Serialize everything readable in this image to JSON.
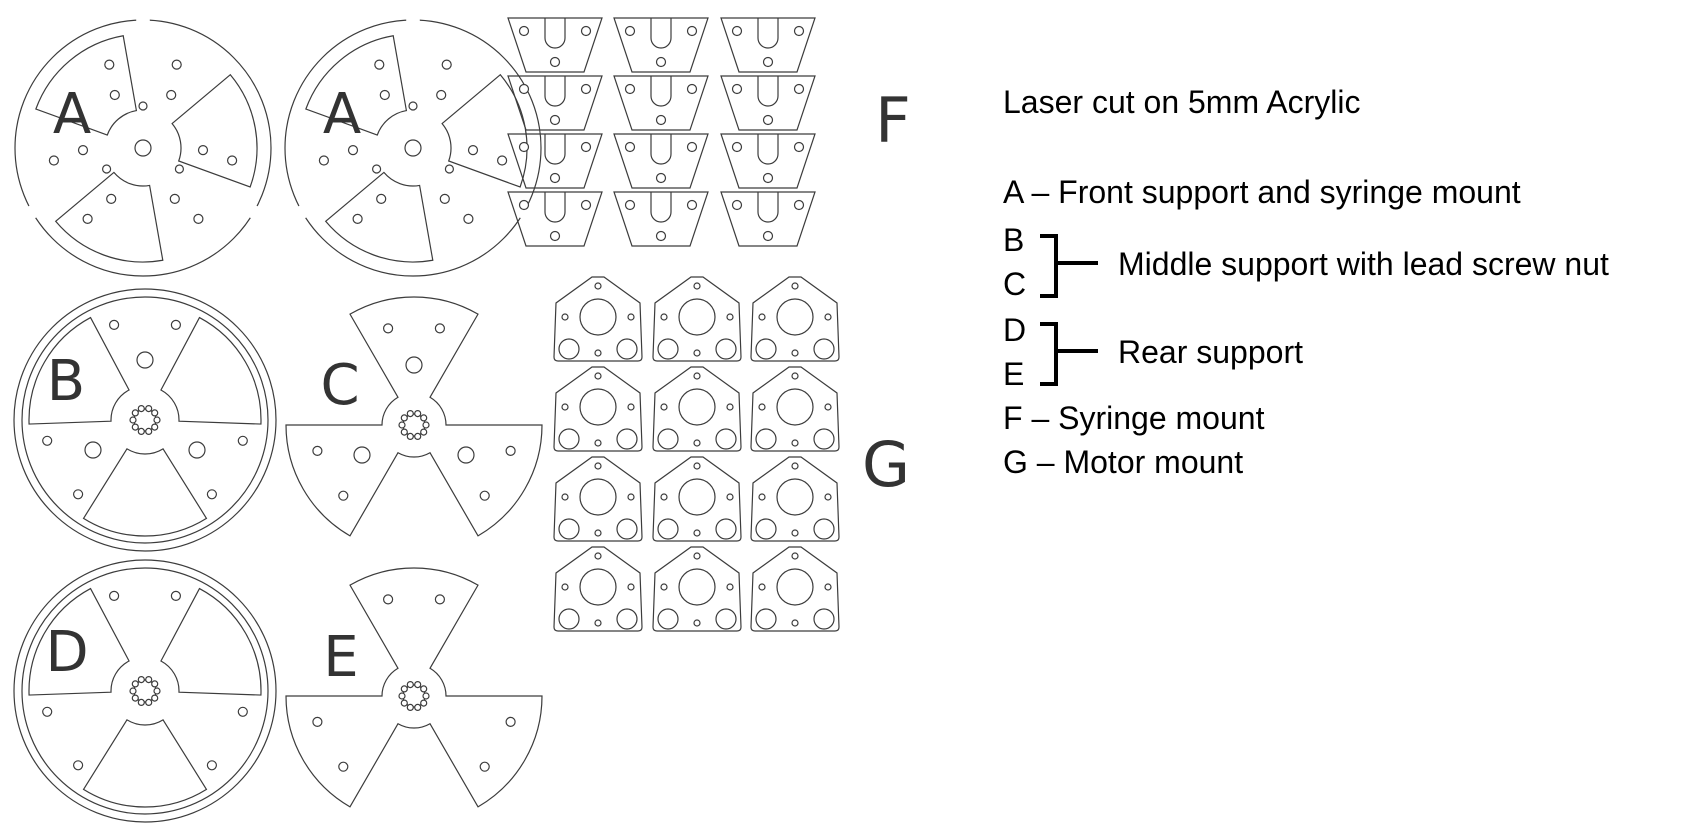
{
  "diagram": {
    "heading": "Laser cut on 5mm Acrylic",
    "part_letters": {
      "a1": "A",
      "a2": "A",
      "b": "B",
      "c": "C",
      "d": "D",
      "e": "E",
      "f": "F",
      "g": "G"
    },
    "legend": {
      "a": "A – Front support and syringe mount",
      "b_letter": "B",
      "c_letter": "C",
      "bc_desc": "Middle support with lead screw nut",
      "d_letter": "D",
      "e_letter": "E",
      "de_desc": "Rear support",
      "f": "F  – Syringe mount",
      "g": "G – Motor mount"
    },
    "colors": {
      "line": "#3c3c3c",
      "text": "#000000",
      "background": "#ffffff"
    }
  }
}
